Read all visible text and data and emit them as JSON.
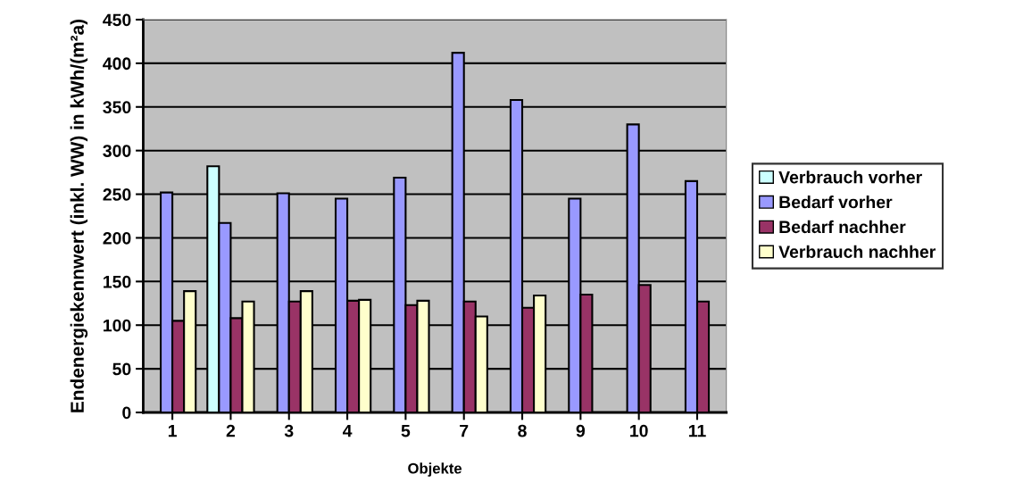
{
  "chart_data": {
    "type": "bar",
    "xlabel": "Objekte",
    "ylabel": "Endenergiekennwert (inkl. WW) in kWh/(m²a)",
    "categories": [
      "1",
      "2",
      "3",
      "4",
      "5",
      "7",
      "8",
      "9",
      "10",
      "11"
    ],
    "series": [
      {
        "name": "Verbrauch vorher",
        "color": "#ccffff",
        "values": [
          null,
          282,
          null,
          null,
          null,
          null,
          null,
          null,
          null,
          null
        ]
      },
      {
        "name": "Bedarf vorher",
        "color": "#9999ff",
        "values": [
          252,
          217,
          251,
          245,
          269,
          412,
          358,
          245,
          330,
          265
        ]
      },
      {
        "name": "Bedarf nachher",
        "color": "#993366",
        "values": [
          105,
          108,
          127,
          128,
          123,
          127,
          120,
          135,
          146,
          127
        ]
      },
      {
        "name": "Verbrauch nachher",
        "color": "#ffffcc",
        "values": [
          139,
          127,
          139,
          129,
          128,
          110,
          134,
          null,
          null,
          null
        ]
      }
    ],
    "ylim": [
      0,
      450
    ],
    "yticks": [
      0,
      50,
      100,
      150,
      200,
      250,
      300,
      350,
      400,
      450
    ],
    "grid": "y",
    "legend": "right"
  }
}
